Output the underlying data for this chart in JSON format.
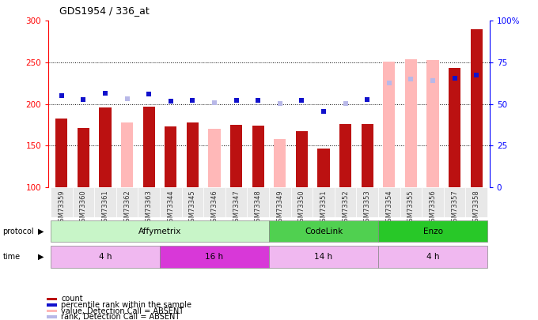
{
  "title": "GDS1954 / 336_at",
  "samples": [
    "GSM73359",
    "GSM73360",
    "GSM73361",
    "GSM73362",
    "GSM73363",
    "GSM73344",
    "GSM73345",
    "GSM73346",
    "GSM73347",
    "GSM73348",
    "GSM73349",
    "GSM73350",
    "GSM73351",
    "GSM73352",
    "GSM73353",
    "GSM73354",
    "GSM73355",
    "GSM73356",
    "GSM73357",
    "GSM73358"
  ],
  "count_values": [
    183,
    171,
    196,
    null,
    197,
    173,
    178,
    null,
    175,
    174,
    null,
    167,
    146,
    176,
    176,
    null,
    null,
    null,
    243,
    290
  ],
  "count_absent": [
    null,
    null,
    null,
    178,
    null,
    null,
    null,
    170,
    null,
    null,
    158,
    null,
    null,
    null,
    null,
    251,
    254,
    253,
    null,
    null
  ],
  "rank_values": [
    210,
    205,
    213,
    null,
    212,
    203,
    204,
    null,
    204,
    204,
    null,
    204,
    191,
    null,
    205,
    null,
    null,
    null,
    231,
    235
  ],
  "rank_absent": [
    null,
    null,
    null,
    206,
    null,
    null,
    null,
    202,
    null,
    null,
    201,
    null,
    null,
    201,
    null,
    225,
    230,
    228,
    null,
    null
  ],
  "ylim_left": [
    100,
    300
  ],
  "ylim_right": [
    0,
    100
  ],
  "yticks_left": [
    100,
    150,
    200,
    250,
    300
  ],
  "yticks_right": [
    0,
    25,
    50,
    75,
    100
  ],
  "ytick_labels_left": [
    "100",
    "150",
    "200",
    "250",
    "300"
  ],
  "ytick_labels_right": [
    "0",
    "25",
    "50",
    "75",
    "100%"
  ],
  "protocol_groups": [
    {
      "label": "Affymetrix",
      "start": 0,
      "end": 9,
      "color": "#c8f5c8"
    },
    {
      "label": "CodeLink",
      "start": 10,
      "end": 14,
      "color": "#50d050"
    },
    {
      "label": "Enzo",
      "start": 15,
      "end": 19,
      "color": "#28c828"
    }
  ],
  "time_groups": [
    {
      "label": "4 h",
      "start": 0,
      "end": 4,
      "color": "#f0b8f0"
    },
    {
      "label": "16 h",
      "start": 5,
      "end": 9,
      "color": "#d838d8"
    },
    {
      "label": "14 h",
      "start": 10,
      "end": 14,
      "color": "#f0b8f0"
    },
    {
      "label": "4 h",
      "start": 15,
      "end": 19,
      "color": "#f0b8f0"
    }
  ],
  "color_count": "#bb1111",
  "color_rank": "#1111cc",
  "color_count_absent": "#ffb8b8",
  "color_rank_absent": "#b8b8e8",
  "legend_items": [
    {
      "color": "#bb1111",
      "label": "count"
    },
    {
      "color": "#1111cc",
      "label": "percentile rank within the sample"
    },
    {
      "color": "#ffb8b8",
      "label": "value, Detection Call = ABSENT"
    },
    {
      "color": "#b8b8e8",
      "label": "rank, Detection Call = ABSENT"
    }
  ],
  "background_color": "#ffffff",
  "axis_bg_color": "#ffffff",
  "cell_bg_color": "#e8e8e8"
}
